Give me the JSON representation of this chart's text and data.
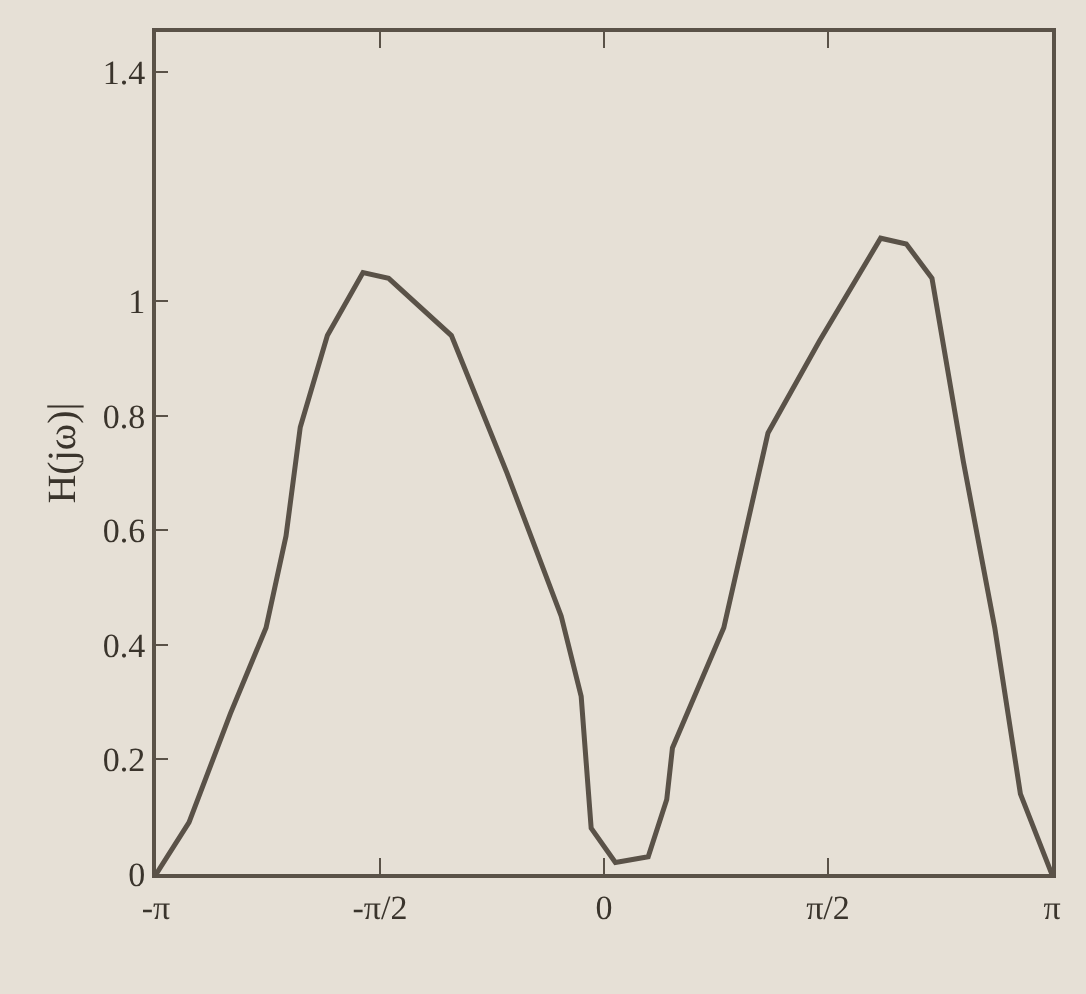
{
  "chart_data": {
    "type": "line",
    "ylabel": "H(jω)|",
    "x": [
      -3.14,
      -2.91,
      -2.62,
      -2.37,
      -2.23,
      -2.13,
      -1.94,
      -1.69,
      -1.51,
      -1.07,
      -0.68,
      -0.3,
      -0.16,
      -0.09,
      0.08,
      0.31,
      0.44,
      0.48,
      0.84,
      1.15,
      1.51,
      1.94,
      2.12,
      2.3,
      2.52,
      2.74,
      2.92,
      3.14
    ],
    "values": [
      0,
      0.09,
      0.28,
      0.43,
      0.59,
      0.78,
      0.94,
      1.05,
      1.04,
      0.94,
      0.7,
      0.45,
      0.31,
      0.08,
      0.02,
      0.03,
      0.13,
      0.22,
      0.43,
      0.77,
      0.93,
      1.11,
      1.1,
      1.04,
      0.72,
      0.43,
      0.14,
      0
    ],
    "color": "#5a5248",
    "xlim": [
      -3.1416,
      3.1416
    ],
    "xticks": [
      {
        "value": -3.1416,
        "label": "-π"
      },
      {
        "value": -1.5708,
        "label": "-π/2"
      },
      0,
      {
        "value": 1.5708,
        "label": "π/2"
      },
      {
        "value": 3.1416,
        "label": "π"
      }
    ],
    "ylim": [
      0,
      1.47
    ],
    "yticks": [
      0,
      0.2,
      0.4,
      0.6,
      0.8,
      1.0,
      1.4
    ],
    "grid": false,
    "marker": "none",
    "line_style": "solid"
  }
}
